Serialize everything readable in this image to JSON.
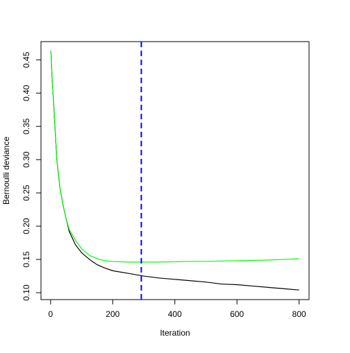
{
  "chart_data": {
    "type": "line",
    "x_label": "Iteration",
    "y_label": "Bernoulli deviance",
    "x": [
      1,
      5,
      10,
      15,
      20,
      30,
      40,
      50,
      60,
      80,
      100,
      125,
      150,
      175,
      200,
      250,
      300,
      350,
      400,
      450,
      500,
      550,
      600,
      650,
      700,
      750,
      800
    ],
    "series": [
      {
        "color": "#000000",
        "values": [
          0.4636,
          0.42,
          0.383,
          0.341,
          0.3,
          0.258,
          0.232,
          0.211,
          0.192,
          0.172,
          0.16,
          0.15,
          0.142,
          0.137,
          0.133,
          0.129,
          0.125,
          0.122,
          0.12,
          0.118,
          0.116,
          0.113,
          0.112,
          0.11,
          0.108,
          0.106,
          0.104
        ]
      },
      {
        "color": "#00ff00",
        "values": [
          0.4636,
          0.42,
          0.383,
          0.341,
          0.3,
          0.258,
          0.232,
          0.211,
          0.195,
          0.179,
          0.166,
          0.156,
          0.151,
          0.148,
          0.147,
          0.146,
          0.146,
          0.146,
          0.1465,
          0.147,
          0.147,
          0.1475,
          0.148,
          0.1485,
          0.149,
          0.15,
          0.151
        ]
      }
    ],
    "vline": {
      "value": 292,
      "color": "#0000ff"
    },
    "xlim": [
      -31,
      832
    ],
    "xticks": [
      0,
      200,
      400,
      600,
      800
    ],
    "ylim": [
      0.0896,
      0.4774
    ],
    "yticks": [
      {
        "value": 0.1,
        "label": "0.10"
      },
      0.15,
      {
        "value": 0.2,
        "label": "0.20"
      },
      0.25,
      {
        "value": 0.3,
        "label": "0.30"
      },
      0.35,
      {
        "value": 0.4,
        "label": "0.40"
      },
      0.45
    ]
  }
}
